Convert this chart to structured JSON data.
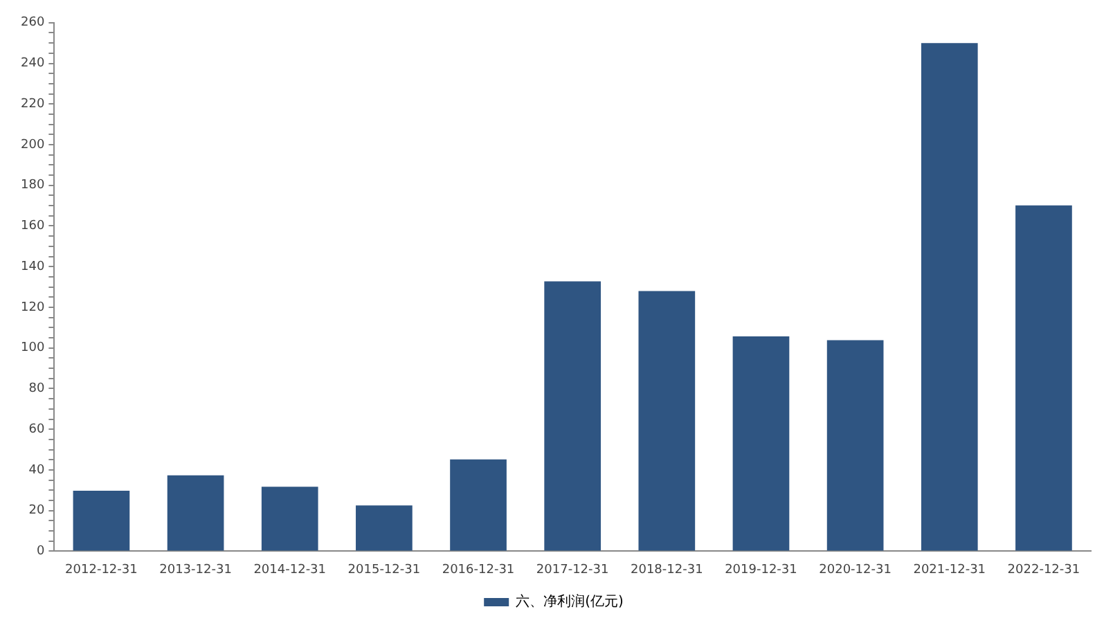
{
  "chart_data": {
    "type": "bar",
    "categories": [
      "2012-12-31",
      "2013-12-31",
      "2014-12-31",
      "2015-12-31",
      "2016-12-31",
      "2017-12-31",
      "2018-12-31",
      "2019-12-31",
      "2020-12-31",
      "2021-12-31",
      "2022-12-31"
    ],
    "series": [
      {
        "name": "六、净利润(亿元)",
        "color": "#2f5582",
        "values": [
          29.8,
          37.3,
          31.7,
          22.5,
          45.2,
          132.8,
          128,
          105.7,
          103.8,
          250,
          170.1
        ]
      }
    ],
    "ylim": [
      0,
      260
    ],
    "yticks": [
      0,
      {
        "value": 5,
        "label": null
      },
      {
        "value": 10,
        "label": null
      },
      {
        "value": 15,
        "label": null
      },
      20,
      {
        "value": 25,
        "label": null
      },
      {
        "value": 30,
        "label": null
      },
      {
        "value": 35,
        "label": null
      },
      40,
      {
        "value": 45,
        "label": null
      },
      {
        "value": 50,
        "label": null
      },
      {
        "value": 55,
        "label": null
      },
      60,
      {
        "value": 65,
        "label": null
      },
      {
        "value": 70,
        "label": null
      },
      {
        "value": 75,
        "label": null
      },
      80,
      {
        "value": 85,
        "label": null
      },
      {
        "value": 90,
        "label": null
      },
      {
        "value": 95,
        "label": null
      },
      100,
      {
        "value": 105,
        "label": null
      },
      {
        "value": 110,
        "label": null
      },
      {
        "value": 115,
        "label": null
      },
      120,
      {
        "value": 125,
        "label": null
      },
      {
        "value": 130,
        "label": null
      },
      {
        "value": 135,
        "label": null
      },
      140,
      {
        "value": 145,
        "label": null
      },
      {
        "value": 150,
        "label": null
      },
      {
        "value": 155,
        "label": null
      },
      160,
      {
        "value": 165,
        "label": null
      },
      {
        "value": 170,
        "label": null
      },
      {
        "value": 175,
        "label": null
      },
      180,
      {
        "value": 185,
        "label": null
      },
      {
        "value": 190,
        "label": null
      },
      {
        "value": 195,
        "label": null
      },
      200,
      {
        "value": 205,
        "label": null
      },
      {
        "value": 210,
        "label": null
      },
      {
        "value": 215,
        "label": null
      },
      220,
      {
        "value": 225,
        "label": null
      },
      {
        "value": 230,
        "label": null
      },
      {
        "value": 235,
        "label": null
      },
      240,
      {
        "value": 245,
        "label": null
      },
      {
        "value": 250,
        "label": null
      },
      {
        "value": 255,
        "label": null
      },
      260
    ],
    "grid": false,
    "legend": "bottom"
  }
}
